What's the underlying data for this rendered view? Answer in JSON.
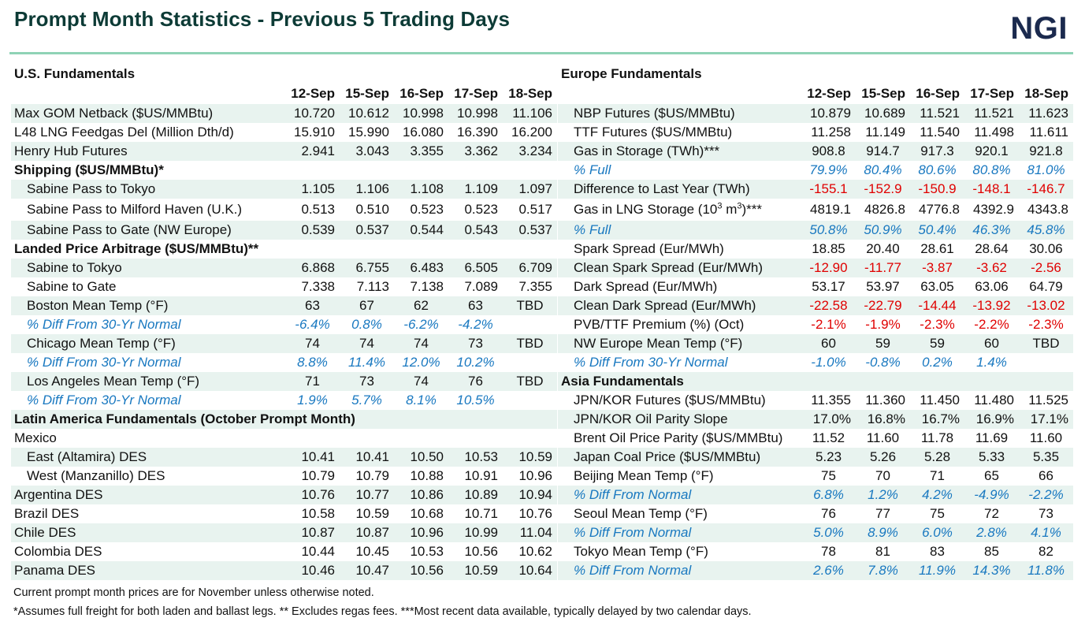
{
  "title": "Prompt Month Statistics - Previous 5 Trading Days",
  "logo": "NGI",
  "colors": {
    "title": "#0d3b36",
    "rule": "#8fd3b6",
    "shade": "#e8f3ef",
    "percent_text": "#1878c0",
    "negative_text": "#e00000",
    "logo": "#1b2a4e"
  },
  "dates": [
    "12-Sep",
    "15-Sep",
    "16-Sep",
    "17-Sep",
    "18-Sep"
  ],
  "us": {
    "heading": "U.S. Fundamentals",
    "rows": [
      {
        "label": "Max GOM Netback ($US/MMBtu)",
        "v": [
          "10.720",
          "10.612",
          "10.998",
          "10.998",
          "11.106"
        ]
      },
      {
        "label": "L48 LNG Feedgas Del (Million Dth/d)",
        "v": [
          "15.910",
          "15.990",
          "16.080",
          "16.390",
          "16.200"
        ]
      },
      {
        "label": "Henry Hub Futures",
        "v": [
          "2.941",
          "3.043",
          "3.355",
          "3.362",
          "3.234"
        ]
      },
      {
        "label": "Shipping ($US/MMBtu)*"
      },
      {
        "label": "Sabine Pass to Tokyo",
        "v": [
          "1.105",
          "1.106",
          "1.108",
          "1.109",
          "1.097"
        ]
      },
      {
        "label": "Sabine Pass to Milford Haven (U.K.)",
        "v": [
          "0.513",
          "0.510",
          "0.523",
          "0.523",
          "0.517"
        ]
      },
      {
        "label": "Sabine Pass to Gate (NW Europe)",
        "v": [
          "0.539",
          "0.537",
          "0.544",
          "0.543",
          "0.537"
        ]
      },
      {
        "label": "Landed Price Arbitrage ($US/MMBtu)**"
      },
      {
        "label": "Sabine to Tokyo",
        "v": [
          "6.868",
          "6.755",
          "6.483",
          "6.505",
          "6.709"
        ]
      },
      {
        "label": "Sabine to Gate",
        "v": [
          "7.338",
          "7.113",
          "7.138",
          "7.089",
          "7.355"
        ]
      },
      {
        "label": "Boston Mean Temp (°F)",
        "v": [
          "63",
          "67",
          "62",
          "63",
          "TBD"
        ]
      },
      {
        "label": "% Diff From 30-Yr Normal",
        "v": [
          "-6.4%",
          "0.8%",
          "-6.2%",
          "-4.2%",
          ""
        ]
      },
      {
        "label": "Chicago Mean Temp (°F)",
        "v": [
          "74",
          "74",
          "74",
          "73",
          "TBD"
        ]
      },
      {
        "label": "% Diff From 30-Yr Normal",
        "v": [
          "8.8%",
          "11.4%",
          "12.0%",
          "10.2%",
          ""
        ]
      },
      {
        "label": "Los Angeles Mean Temp (°F)",
        "v": [
          "71",
          "73",
          "74",
          "76",
          "TBD"
        ]
      },
      {
        "label": "% Diff From 30-Yr Normal",
        "v": [
          "1.9%",
          "5.7%",
          "8.1%",
          "10.5%",
          ""
        ]
      },
      {
        "label": "Latin America Fundamentals (October Prompt Month)"
      },
      {
        "label": "Mexico"
      },
      {
        "label": "East (Altamira) DES",
        "v": [
          "10.41",
          "10.41",
          "10.50",
          "10.53",
          "10.59"
        ]
      },
      {
        "label": "West (Manzanillo) DES",
        "v": [
          "10.79",
          "10.79",
          "10.88",
          "10.91",
          "10.96"
        ]
      },
      {
        "label": "Argentina DES",
        "v": [
          "10.76",
          "10.77",
          "10.86",
          "10.89",
          "10.94"
        ]
      },
      {
        "label": "Brazil DES",
        "v": [
          "10.58",
          "10.59",
          "10.68",
          "10.71",
          "10.76"
        ]
      },
      {
        "label": "Chile DES",
        "v": [
          "10.87",
          "10.87",
          "10.96",
          "10.99",
          "11.04"
        ]
      },
      {
        "label": "Colombia DES",
        "v": [
          "10.44",
          "10.45",
          "10.53",
          "10.56",
          "10.62"
        ]
      },
      {
        "label": "Panama DES",
        "v": [
          "10.46",
          "10.47",
          "10.56",
          "10.59",
          "10.64"
        ]
      }
    ]
  },
  "europe": {
    "heading": "Europe Fundamentals",
    "rows": [
      {
        "label": "NBP Futures ($US/MMBtu)",
        "v": [
          "10.879",
          "10.689",
          "11.521",
          "11.521",
          "11.623"
        ]
      },
      {
        "label": "TTF Futures ($US/MMBtu)",
        "v": [
          "11.258",
          "11.149",
          "11.540",
          "11.498",
          "11.611"
        ]
      },
      {
        "label": "Gas in Storage (TWh)***",
        "v": [
          "908.8",
          "914.7",
          "917.3",
          "920.1",
          "921.8"
        ]
      },
      {
        "label": "% Full",
        "v": [
          "79.9%",
          "80.4%",
          "80.6%",
          "80.8%",
          "81.0%"
        ]
      },
      {
        "label": "Difference to Last Year (TWh)",
        "v": [
          "-155.1",
          "-152.9",
          "-150.9",
          "-148.1",
          "-146.7"
        ]
      },
      {
        "label_pre": "Gas in LNG Storage (10",
        "label_sup1": "3",
        "label_mid": " m",
        "label_sup2": "3",
        "label_post": ")***",
        "v": [
          "4819.1",
          "4826.8",
          "4776.8",
          "4392.9",
          "4343.8"
        ]
      },
      {
        "label": "% Full",
        "v": [
          "50.8%",
          "50.9%",
          "50.4%",
          "46.3%",
          "45.8%"
        ]
      },
      {
        "label": "Spark Spread (Eur/MWh)",
        "v": [
          "18.85",
          "20.40",
          "28.61",
          "28.64",
          "30.06"
        ]
      },
      {
        "label": "Clean Spark Spread (Eur/MWh)",
        "v": [
          "-12.90",
          "-11.77",
          "-3.87",
          "-3.62",
          "-2.56"
        ]
      },
      {
        "label": "Dark Spread (Eur/MWh)",
        "v": [
          "53.17",
          "53.97",
          "63.05",
          "63.06",
          "64.79"
        ]
      },
      {
        "label": "Clean Dark Spread (Eur/MWh)",
        "v": [
          "-22.58",
          "-22.79",
          "-14.44",
          "-13.92",
          "-13.02"
        ]
      },
      {
        "label": "PVB/TTF Premium (%) (Oct)",
        "v": [
          "-2.1%",
          "-1.9%",
          "-2.3%",
          "-2.2%",
          "-2.3%"
        ]
      },
      {
        "label": "NW Europe Mean Temp (°F)",
        "v": [
          "60",
          "59",
          "59",
          "60",
          "TBD"
        ]
      },
      {
        "label": "% Diff From 30-Yr Normal",
        "v": [
          "-1.0%",
          "-0.8%",
          "0.2%",
          "1.4%",
          ""
        ]
      }
    ]
  },
  "asia": {
    "heading": "Asia Fundamentals",
    "rows": [
      {
        "label": "JPN/KOR Futures ($US/MMBtu)",
        "v": [
          "11.355",
          "11.360",
          "11.450",
          "11.480",
          "11.525"
        ]
      },
      {
        "label": "JPN/KOR Oil Parity Slope",
        "v": [
          "17.0%",
          "16.8%",
          "16.7%",
          "16.9%",
          "17.1%"
        ]
      },
      {
        "label": "Brent Oil Price Parity ($US/MMBtu)",
        "v": [
          "11.52",
          "11.60",
          "11.78",
          "11.69",
          "11.60"
        ]
      },
      {
        "label": "Japan Coal Price ($US/MMBtu)",
        "v": [
          "5.23",
          "5.26",
          "5.28",
          "5.33",
          "5.35"
        ]
      },
      {
        "label": "Beijing Mean Temp (°F)",
        "v": [
          "75",
          "70",
          "71",
          "65",
          "66"
        ]
      },
      {
        "label": "% Diff From Normal",
        "v": [
          "6.8%",
          "1.2%",
          "4.2%",
          "-4.9%",
          "-2.2%"
        ]
      },
      {
        "label": "Seoul Mean Temp (°F)",
        "v": [
          "76",
          "77",
          "75",
          "72",
          "73"
        ]
      },
      {
        "label": "% Diff From Normal",
        "v": [
          "5.0%",
          "8.9%",
          "6.0%",
          "2.8%",
          "4.1%"
        ]
      },
      {
        "label": "Tokyo Mean Temp (°F)",
        "v": [
          "78",
          "81",
          "83",
          "85",
          "82"
        ]
      },
      {
        "label": "% Diff From Normal",
        "v": [
          "2.6%",
          "7.8%",
          "11.9%",
          "14.3%",
          "11.8%"
        ]
      }
    ]
  },
  "footnotes": [
    "Current prompt month prices are for November  unless otherwise noted.",
    "*Assumes  full freight for both laden and ballast legs.  ** Excludes  regas fees.  ***Most recent data available,  typically delayed by two calendar days."
  ]
}
